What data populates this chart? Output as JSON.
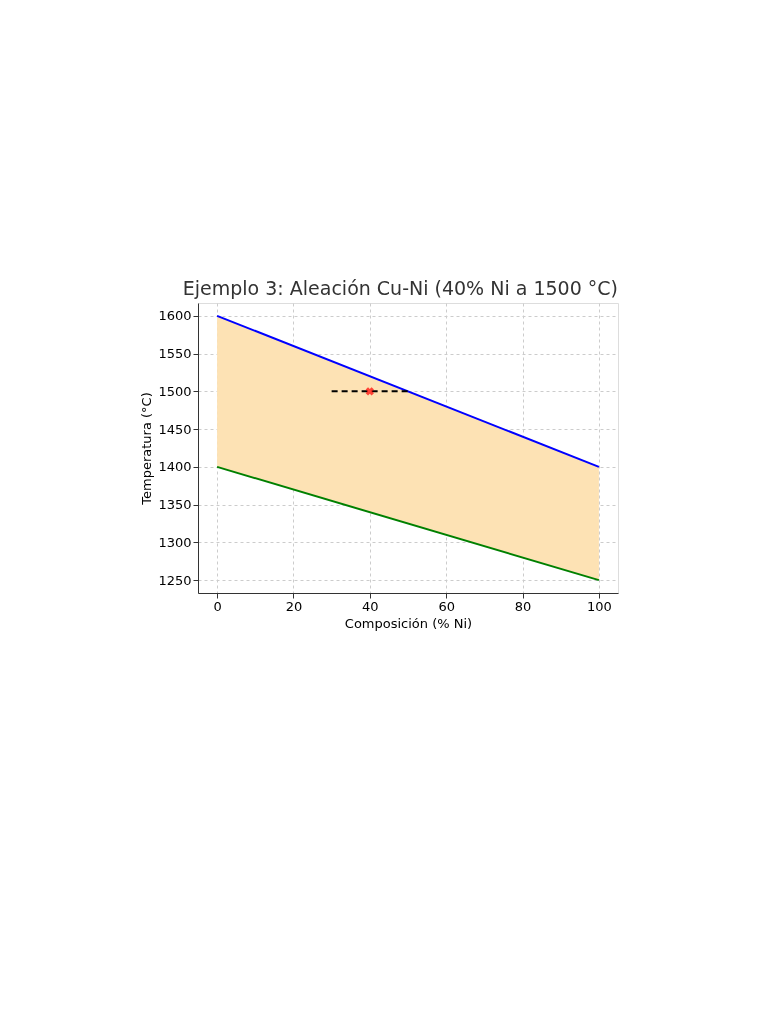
{
  "chart_data": {
    "type": "line",
    "title": "Ejemplo 3: Aleación Cu-Ni (40% Ni a 1500 °C)",
    "xlabel": "Composición (% Ni)",
    "ylabel": "Temperatura (°C)",
    "xlim": [
      -5,
      105
    ],
    "xticks": [
      0,
      20,
      40,
      60,
      80,
      100
    ],
    "ylim": [
      1233,
      1617
    ],
    "yticks": [
      1250,
      1300,
      1350,
      1400,
      1450,
      1500,
      1550,
      1600
    ],
    "grid": true,
    "series": [
      {
        "type": "line",
        "color": "#0000ff",
        "x": [
          0,
          100
        ],
        "values": [
          1600,
          1400
        ],
        "line_style": "solid",
        "lower": [
          1400,
          1250
        ],
        "upper": [
          1600,
          1400
        ]
      },
      {
        "type": "line",
        "color": "#008000",
        "x": [
          0,
          100
        ],
        "values": [
          1400,
          1250
        ],
        "line_style": "solid"
      },
      {
        "type": "line",
        "color": "#000000",
        "x": [
          30,
          50
        ],
        "values": [
          1500,
          1500
        ],
        "line_style": "dashed"
      },
      {
        "type": "scatter",
        "color": "#ff0000",
        "x": [
          40
        ],
        "values": [
          1500
        ],
        "marker": "cross"
      }
    ]
  }
}
